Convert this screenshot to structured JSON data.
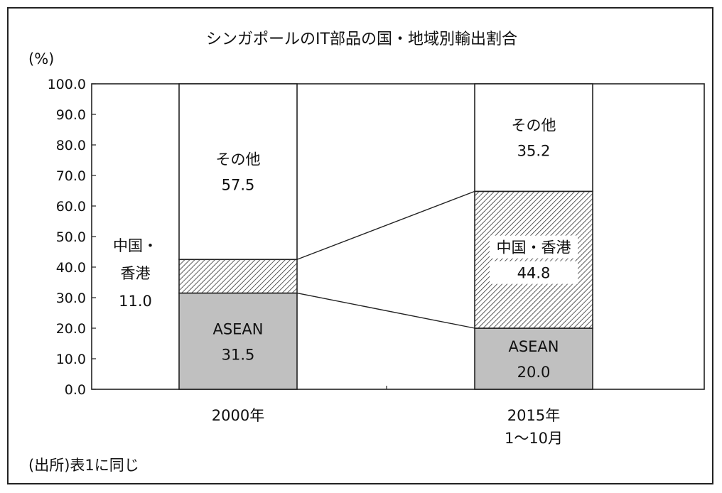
{
  "chart_data": {
    "type": "bar",
    "stacked": true,
    "title": "シンガポールのIT部品の国・地域別輸出割合",
    "ylabel": "(%)",
    "ylim": [
      0,
      100
    ],
    "yticks": [
      "0.0",
      "10.0",
      "20.0",
      "30.0",
      "40.0",
      "50.0",
      "60.0",
      "70.0",
      "80.0",
      "90.0",
      "100.0"
    ],
    "categories": [
      {
        "lines": [
          "2000年"
        ]
      },
      {
        "lines": [
          "2015年",
          "1～10月"
        ]
      }
    ],
    "series": [
      {
        "name": "ASEAN",
        "values": [
          31.5,
          20.0
        ],
        "color": "#c0c0c0",
        "pattern": "solid"
      },
      {
        "name": "中国・香港",
        "values": [
          11.0,
          44.8
        ],
        "color": "#ffffff",
        "pattern": "hatch"
      },
      {
        "name": "その他",
        "values": [
          57.5,
          35.2
        ],
        "color": "#ffffff",
        "pattern": "none"
      }
    ],
    "segment_labels": [
      [
        {
          "lines": [
            "ASEAN",
            "31.5"
          ]
        },
        {
          "lines": [
            "中国・",
            "香港",
            "11.0"
          ],
          "outside": true
        },
        {
          "lines": [
            "その他",
            "57.5"
          ]
        }
      ],
      [
        {
          "lines": [
            "ASEAN",
            "20.0"
          ]
        },
        {
          "lines": [
            "中国・香港",
            "44.8"
          ]
        },
        {
          "lines": [
            "その他",
            "35.2"
          ]
        }
      ]
    ],
    "connector_lines": true,
    "grid": false,
    "source_note": "(出所)表1に同じ"
  }
}
